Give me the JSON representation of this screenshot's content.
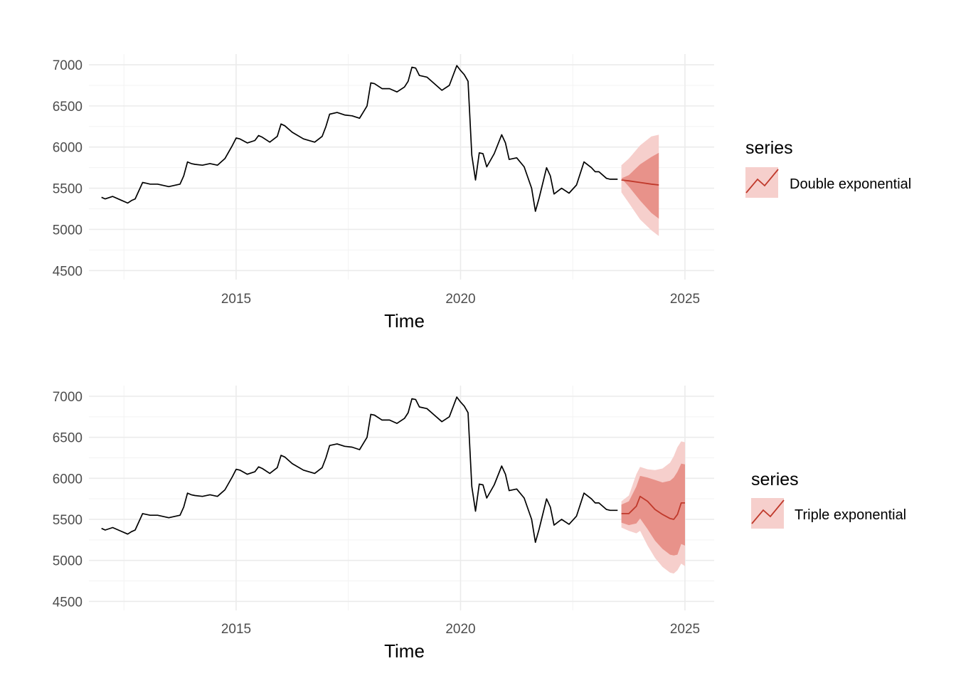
{
  "chart_data": [
    {
      "type": "line",
      "title": "",
      "xlabel": "Time",
      "ylabel": "",
      "xlim": [
        2011.72,
        2025.65
      ],
      "ylim": [
        4390,
        7130
      ],
      "xticks": [
        2015,
        2020,
        2025
      ],
      "yticks": [
        4500,
        5000,
        5500,
        6000,
        6500,
        7000
      ],
      "grid": true,
      "legend": {
        "title": "series",
        "label": "Double exponential",
        "placement": "right"
      },
      "colors": {
        "actual": "#000000",
        "forecast": "#c0392b",
        "band80": "#e8928a",
        "band95": "#f6cfcc"
      },
      "actual": {
        "name": "",
        "x": [
          2012.0,
          2012.083,
          2012.25,
          2012.417,
          2012.583,
          2012.667,
          2012.75,
          2012.917,
          2013.0,
          2013.083,
          2013.25,
          2013.5,
          2013.75,
          2013.833,
          2013.917,
          2014.0,
          2014.083,
          2014.25,
          2014.417,
          2014.583,
          2014.75,
          2014.917,
          2015.0,
          2015.083,
          2015.25,
          2015.417,
          2015.5,
          2015.583,
          2015.75,
          2015.917,
          2016.0,
          2016.083,
          2016.25,
          2016.5,
          2016.75,
          2016.917,
          2017.0,
          2017.083,
          2017.25,
          2017.417,
          2017.583,
          2017.75,
          2017.917,
          2018.0,
          2018.083,
          2018.25,
          2018.417,
          2018.583,
          2018.75,
          2018.833,
          2018.917,
          2019.0,
          2019.083,
          2019.25,
          2019.417,
          2019.583,
          2019.75,
          2019.917,
          2020.0,
          2020.083,
          2020.167,
          2020.25,
          2020.333,
          2020.417,
          2020.5,
          2020.583,
          2020.75,
          2020.917,
          2021.0,
          2021.083,
          2021.25,
          2021.417,
          2021.583,
          2021.667,
          2021.75,
          2021.917,
          2022.0,
          2022.083,
          2022.25,
          2022.417,
          2022.583,
          2022.75,
          2022.917,
          2023.0,
          2023.083,
          2023.25,
          2023.333,
          2023.417,
          2023.5
        ],
        "y": [
          5390,
          5370,
          5400,
          5360,
          5320,
          5350,
          5370,
          5570,
          5560,
          5550,
          5550,
          5520,
          5550,
          5650,
          5820,
          5800,
          5790,
          5780,
          5800,
          5780,
          5860,
          6020,
          6110,
          6100,
          6050,
          6080,
          6140,
          6120,
          6060,
          6130,
          6280,
          6260,
          6180,
          6100,
          6060,
          6130,
          6250,
          6400,
          6420,
          6390,
          6380,
          6350,
          6500,
          6780,
          6770,
          6710,
          6710,
          6670,
          6730,
          6800,
          6970,
          6960,
          6870,
          6850,
          6770,
          6690,
          6750,
          6990,
          6930,
          6880,
          6800,
          5900,
          5600,
          5930,
          5920,
          5760,
          5920,
          6150,
          6050,
          5850,
          5870,
          5760,
          5500,
          5220,
          5380,
          5750,
          5650,
          5430,
          5500,
          5440,
          5540,
          5820,
          5750,
          5700,
          5700,
          5620,
          5610,
          5610,
          5610
        ]
      },
      "forecast": {
        "name": "Double exponential",
        "x": [
          2023.583,
          2023.75,
          2024.0,
          2024.25,
          2024.417
        ],
        "y": [
          5600,
          5590,
          5570,
          5550,
          5540
        ],
        "lo80": [
          5620,
          5520,
          5350,
          5200,
          5130
        ],
        "hi80": [
          5620,
          5660,
          5790,
          5880,
          5930
        ],
        "lo95": [
          5450,
          5320,
          5120,
          4990,
          4920
        ],
        "hi95": [
          5780,
          5860,
          6020,
          6130,
          6150
        ]
      }
    },
    {
      "type": "line",
      "title": "",
      "xlabel": "Time",
      "ylabel": "",
      "xlim": [
        2011.72,
        2025.65
      ],
      "ylim": [
        4390,
        7130
      ],
      "xticks": [
        2015,
        2020,
        2025
      ],
      "yticks": [
        4500,
        5000,
        5500,
        6000,
        6500,
        7000
      ],
      "grid": true,
      "legend": {
        "title": "series",
        "label": "Triple exponential",
        "placement": "right"
      },
      "colors": {
        "actual": "#000000",
        "forecast": "#c0392b",
        "band80": "#e8928a",
        "band95": "#f6cfcc"
      },
      "actual": {
        "name": "",
        "x": [
          2012.0,
          2012.083,
          2012.25,
          2012.417,
          2012.583,
          2012.667,
          2012.75,
          2012.917,
          2013.0,
          2013.083,
          2013.25,
          2013.5,
          2013.75,
          2013.833,
          2013.917,
          2014.0,
          2014.083,
          2014.25,
          2014.417,
          2014.583,
          2014.75,
          2014.917,
          2015.0,
          2015.083,
          2015.25,
          2015.417,
          2015.5,
          2015.583,
          2015.75,
          2015.917,
          2016.0,
          2016.083,
          2016.25,
          2016.5,
          2016.75,
          2016.917,
          2017.0,
          2017.083,
          2017.25,
          2017.417,
          2017.583,
          2017.75,
          2017.917,
          2018.0,
          2018.083,
          2018.25,
          2018.417,
          2018.583,
          2018.75,
          2018.833,
          2018.917,
          2019.0,
          2019.083,
          2019.25,
          2019.417,
          2019.583,
          2019.75,
          2019.917,
          2020.0,
          2020.083,
          2020.167,
          2020.25,
          2020.333,
          2020.417,
          2020.5,
          2020.583,
          2020.75,
          2020.917,
          2021.0,
          2021.083,
          2021.25,
          2021.417,
          2021.583,
          2021.667,
          2021.75,
          2021.917,
          2022.0,
          2022.083,
          2022.25,
          2022.417,
          2022.583,
          2022.75,
          2022.917,
          2023.0,
          2023.083,
          2023.25,
          2023.333,
          2023.417,
          2023.5
        ],
        "y": [
          5390,
          5370,
          5400,
          5360,
          5320,
          5350,
          5370,
          5570,
          5560,
          5550,
          5550,
          5520,
          5550,
          5650,
          5820,
          5800,
          5790,
          5780,
          5800,
          5780,
          5860,
          6020,
          6110,
          6100,
          6050,
          6080,
          6140,
          6120,
          6060,
          6130,
          6280,
          6260,
          6180,
          6100,
          6060,
          6130,
          6250,
          6400,
          6420,
          6390,
          6380,
          6350,
          6500,
          6780,
          6770,
          6710,
          6710,
          6670,
          6730,
          6800,
          6970,
          6960,
          6870,
          6850,
          6770,
          6690,
          6750,
          6990,
          6930,
          6880,
          6800,
          5900,
          5600,
          5930,
          5920,
          5760,
          5920,
          6150,
          6050,
          5850,
          5870,
          5760,
          5500,
          5220,
          5380,
          5750,
          5650,
          5430,
          5500,
          5440,
          5540,
          5820,
          5750,
          5700,
          5700,
          5620,
          5610,
          5610,
          5610
        ]
      },
      "forecast": {
        "name": "Triple exponential",
        "x": [
          2023.583,
          2023.75,
          2023.917,
          2024.0,
          2024.167,
          2024.333,
          2024.5,
          2024.667,
          2024.75,
          2024.833,
          2024.917,
          2025.0
        ],
        "y": [
          5570,
          5570,
          5660,
          5780,
          5720,
          5620,
          5560,
          5510,
          5500,
          5560,
          5700,
          5700
        ],
        "lo80": [
          5460,
          5430,
          5450,
          5510,
          5380,
          5240,
          5140,
          5070,
          5060,
          5070,
          5200,
          5180
        ],
        "hi80": [
          5680,
          5720,
          5900,
          6030,
          6010,
          5980,
          5950,
          5970,
          6010,
          6080,
          6180,
          6170
        ],
        "lo95": [
          5400,
          5360,
          5330,
          5360,
          5180,
          5030,
          4920,
          4850,
          4840,
          4880,
          4960,
          4930
        ],
        "hi95": [
          5720,
          5790,
          6050,
          6140,
          6110,
          6100,
          6120,
          6190,
          6270,
          6380,
          6450,
          6440
        ]
      }
    }
  ]
}
